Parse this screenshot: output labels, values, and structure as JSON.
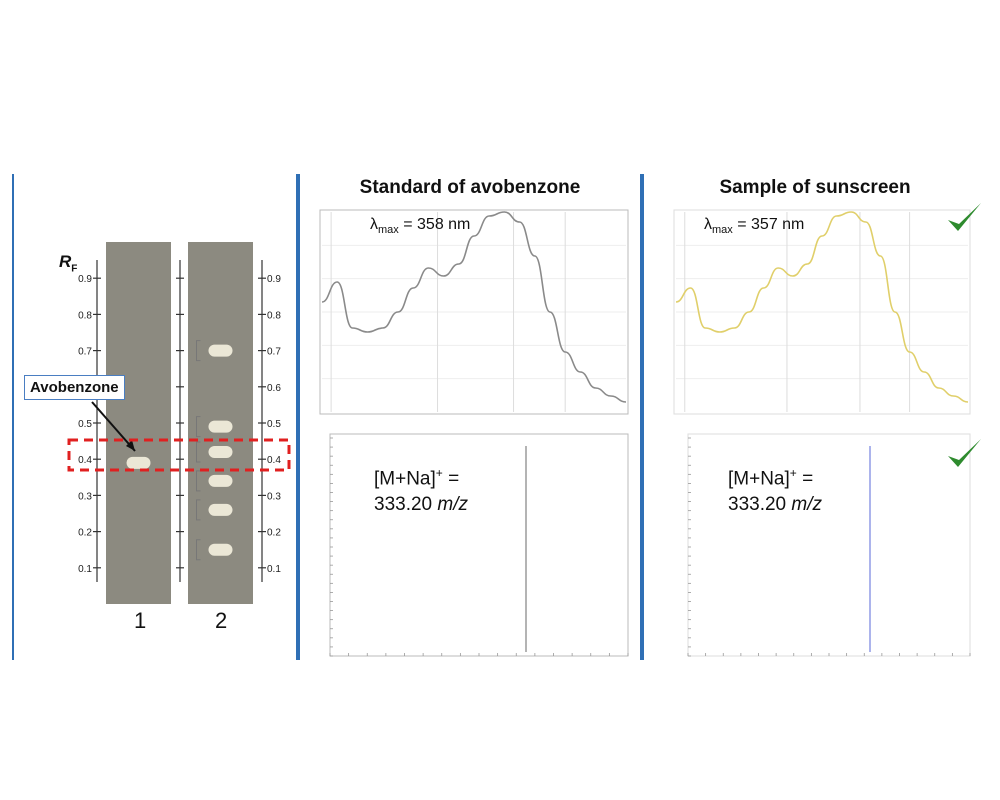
{
  "tlc": {
    "rf_symbol": "R",
    "rf_subscript": "F",
    "rf_ticks": [
      "0.9",
      "0.8",
      "0.7",
      "0.6",
      "0.5",
      "0.4",
      "0.3",
      "0.2",
      "0.1"
    ],
    "callout": "Avobenzone",
    "lanes": [
      {
        "label": "1",
        "spots_rf": [
          0.39
        ]
      },
      {
        "label": "2",
        "spots_rf": [
          0.7,
          0.49,
          0.42,
          0.34,
          0.26,
          0.15
        ]
      }
    ]
  },
  "standard": {
    "title": "Standard of avobenzone",
    "lambda_symbol": "λ",
    "lambda_sub": "max",
    "lambda_value": " = 358 nm",
    "ms_line1": "[M+Na]",
    "ms_sup": "+",
    "ms_eq": " =",
    "ms_value": "333.20 ",
    "ms_unit": "m/z",
    "uv_color": "#8a8a8a",
    "ms_color": "#6a6a6a"
  },
  "sample": {
    "title": "Sample of sunscreen",
    "lambda_symbol": "λ",
    "lambda_sub": "max",
    "lambda_value": " = 357 nm",
    "ms_line1": "[M+Na]",
    "ms_sup": "+",
    "ms_eq": " =",
    "ms_value": "333.20 ",
    "ms_unit": "m/z",
    "uv_color": "#e0cf6a",
    "ms_color": "#5a6ad8"
  },
  "check_icon_color": "#2e8b2e",
  "chart_data": [
    {
      "type": "line",
      "title": "Standard of avobenzone",
      "x": [
        0,
        1,
        2,
        3,
        4,
        5,
        6,
        7,
        8,
        9,
        10,
        11,
        12,
        13,
        14,
        15,
        16,
        17,
        18,
        19,
        20
      ],
      "values": [
        0.55,
        0.65,
        0.42,
        0.4,
        0.42,
        0.5,
        0.62,
        0.72,
        0.68,
        0.74,
        0.88,
        0.98,
        1.0,
        0.95,
        0.78,
        0.5,
        0.3,
        0.2,
        0.12,
        0.08,
        0.05
      ]
    },
    {
      "type": "line",
      "title": "Sample of sunscreen",
      "x": [
        0,
        1,
        2,
        3,
        4,
        5,
        6,
        7,
        8,
        9,
        10,
        11,
        12,
        13,
        14,
        15,
        16,
        17,
        18,
        19,
        20
      ],
      "values": [
        0.55,
        0.62,
        0.42,
        0.4,
        0.42,
        0.5,
        0.62,
        0.72,
        0.68,
        0.74,
        0.88,
        0.98,
        1.0,
        0.95,
        0.78,
        0.5,
        0.3,
        0.2,
        0.12,
        0.08,
        0.05
      ]
    }
  ]
}
